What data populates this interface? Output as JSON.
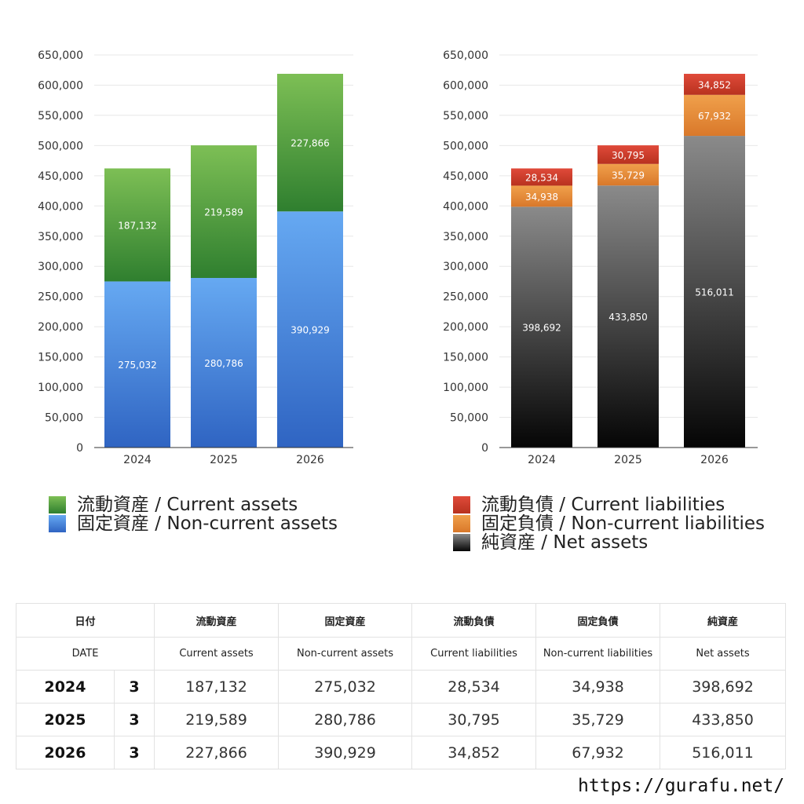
{
  "colors": {
    "current_assets": [
      "#7dbf55",
      "#2f7f2f"
    ],
    "noncurrent_assets": [
      "#66a9f2",
      "#2f64c2"
    ],
    "current_liabilities": [
      "#e04a3a",
      "#b8321f"
    ],
    "noncurrent_liabilities": [
      "#f0a04b",
      "#d9782a"
    ],
    "net_assets": [
      "#8a8a8a",
      "#050505"
    ],
    "grid": "#e8e8e8",
    "axis": "#333333"
  },
  "chart_data": [
    {
      "type": "bar",
      "stacked": true,
      "categories": [
        "2024",
        "2025",
        "2026"
      ],
      "ylim": [
        0,
        650000
      ],
      "yticks": [
        "0",
        "50,000",
        "100,000",
        "150,000",
        "200,000",
        "250,000",
        "300,000",
        "350,000",
        "400,000",
        "450,000",
        "500,000",
        "550,000",
        "600,000",
        "650,000"
      ],
      "grid": true,
      "legend_position": "bottom",
      "series": [
        {
          "name": "固定資産 / Non-current assets",
          "key": "noncurrent_assets",
          "values": [
            275032,
            280786,
            390929
          ],
          "labels": [
            "275,032",
            "280,786",
            "390,929"
          ]
        },
        {
          "name": "流動資産 / Current assets",
          "key": "current_assets",
          "values": [
            187132,
            219589,
            227866
          ],
          "labels": [
            "187,132",
            "219,589",
            "227,866"
          ]
        }
      ]
    },
    {
      "type": "bar",
      "stacked": true,
      "categories": [
        "2024",
        "2025",
        "2026"
      ],
      "ylim": [
        0,
        650000
      ],
      "yticks": [
        "0",
        "50,000",
        "100,000",
        "150,000",
        "200,000",
        "250,000",
        "300,000",
        "350,000",
        "400,000",
        "450,000",
        "500,000",
        "550,000",
        "600,000",
        "650,000"
      ],
      "grid": true,
      "legend_position": "bottom",
      "series": [
        {
          "name": "純資産 / Net assets",
          "key": "net_assets",
          "values": [
            398692,
            433850,
            516011
          ],
          "labels": [
            "398,692",
            "433,850",
            "516,011"
          ]
        },
        {
          "name": "固定負債 / Non-current liabilities",
          "key": "noncurrent_liabilities",
          "values": [
            34938,
            35729,
            67932
          ],
          "labels": [
            "34,938",
            "35,729",
            "67,932"
          ]
        },
        {
          "name": "流動負債 / Current liabilities",
          "key": "current_liabilities",
          "values": [
            28534,
            30795,
            34852
          ],
          "labels": [
            "28,534",
            "30,795",
            "34,852"
          ]
        }
      ]
    }
  ],
  "legend_left": [
    {
      "label": "流動資産 / Current assets",
      "key": "current_assets"
    },
    {
      "label": "固定資産 / Non-current assets",
      "key": "noncurrent_assets"
    }
  ],
  "legend_right": [
    {
      "label": "流動負債 / Current liabilities",
      "key": "current_liabilities"
    },
    {
      "label": "固定負債 / Non-current liabilities",
      "key": "noncurrent_liabilities"
    },
    {
      "label": "純資産 / Net assets",
      "key": "net_assets"
    }
  ],
  "table": {
    "header_jp": [
      "日付",
      "流動資産",
      "固定資産",
      "流動負債",
      "固定負債",
      "純資産"
    ],
    "header_en": [
      "DATE",
      "Current assets",
      "Non-current assets",
      "Current liabilities",
      "Non-current liabilities",
      "Net assets"
    ],
    "rows": [
      {
        "year": "2024",
        "month": "3",
        "values": [
          "187,132",
          "275,032",
          "28,534",
          "34,938",
          "398,692"
        ]
      },
      {
        "year": "2025",
        "month": "3",
        "values": [
          "219,589",
          "280,786",
          "30,795",
          "35,729",
          "433,850"
        ]
      },
      {
        "year": "2026",
        "month": "3",
        "values": [
          "227,866",
          "390,929",
          "34,852",
          "67,932",
          "516,011"
        ]
      }
    ]
  },
  "site_url": "https://gurafu.net/"
}
